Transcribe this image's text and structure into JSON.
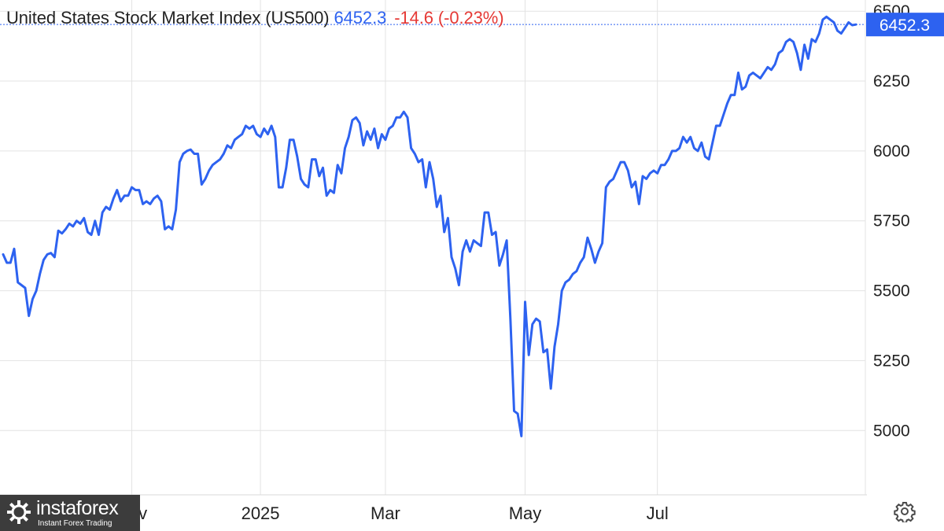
{
  "header": {
    "title": "United States Stock Market Index (US500)",
    "price": "6452.3",
    "change": "-14.6 (-0.23%)"
  },
  "watermark": {
    "brand": "instaforex",
    "tagline": "Instant Forex Trading"
  },
  "colors": {
    "line": "#2d62f0",
    "change_negative": "#e53935",
    "grid": "#e3e3e3",
    "price_tag": "#2d62f0"
  },
  "icons": {
    "settings": "gear-icon",
    "logo": "instaforex-logo-icon"
  },
  "chart_data": {
    "type": "line",
    "title": "United States Stock Market Index (US500)",
    "x_labels": [
      "Nov",
      "2025",
      "Mar",
      "May",
      "Jul"
    ],
    "x_label_indices": [
      35,
      70,
      104,
      142,
      178
    ],
    "y_ticks": [
      5000,
      5250,
      5500,
      5750,
      6000,
      6250,
      6500
    ],
    "ylim": [
      4770,
      6540
    ],
    "grid": true,
    "last_value": "6452.3",
    "series": [
      {
        "values": [
          5630,
          5600,
          5600,
          5650,
          5530,
          5520,
          5510,
          5410,
          5470,
          5500,
          5560,
          5610,
          5630,
          5635,
          5620,
          5715,
          5705,
          5720,
          5740,
          5730,
          5750,
          5740,
          5760,
          5710,
          5700,
          5750,
          5700,
          5780,
          5800,
          5790,
          5830,
          5860,
          5820,
          5840,
          5840,
          5870,
          5860,
          5860,
          5810,
          5820,
          5810,
          5830,
          5840,
          5820,
          5720,
          5730,
          5720,
          5790,
          5960,
          5990,
          6000,
          6005,
          5990,
          5990,
          5880,
          5900,
          5930,
          5950,
          5960,
          5970,
          5990,
          6020,
          6010,
          6040,
          6050,
          6060,
          6090,
          6080,
          6090,
          6060,
          6050,
          6080,
          6060,
          6090,
          6050,
          5870,
          5870,
          5940,
          6040,
          6040,
          5980,
          5900,
          5880,
          5870,
          5970,
          5970,
          5910,
          5940,
          5840,
          5860,
          5850,
          5950,
          5920,
          6010,
          6050,
          6110,
          6120,
          6100,
          6020,
          6070,
          6040,
          6080,
          6010,
          6060,
          6040,
          6080,
          6090,
          6120,
          6120,
          6140,
          6120,
          6010,
          5990,
          5960,
          5970,
          5870,
          5960,
          5900,
          5800,
          5840,
          5710,
          5760,
          5620,
          5580,
          5520,
          5640,
          5680,
          5640,
          5680,
          5670,
          5660,
          5780,
          5780,
          5700,
          5710,
          5590,
          5630,
          5680,
          5400,
          5070,
          5060,
          4980,
          5460,
          5270,
          5380,
          5400,
          5390,
          5280,
          5290,
          5150,
          5300,
          5380,
          5500,
          5530,
          5540,
          5560,
          5570,
          5600,
          5620,
          5690,
          5650,
          5600,
          5640,
          5670,
          5870,
          5890,
          5900,
          5930,
          5960,
          5960,
          5930,
          5870,
          5890,
          5810,
          5910,
          5900,
          5920,
          5930,
          5920,
          5950,
          5950,
          5970,
          6000,
          6000,
          6010,
          6050,
          6030,
          6050,
          6010,
          6000,
          6030,
          5980,
          5970,
          6030,
          6090,
          6090,
          6130,
          6170,
          6200,
          6200,
          6280,
          6220,
          6230,
          6270,
          6280,
          6270,
          6260,
          6280,
          6300,
          6290,
          6310,
          6350,
          6360,
          6390,
          6400,
          6390,
          6350,
          6290,
          6380,
          6330,
          6400,
          6390,
          6420,
          6470,
          6480,
          6470,
          6460,
          6430,
          6420,
          6440,
          6460,
          6450,
          6452.3
        ]
      }
    ]
  }
}
